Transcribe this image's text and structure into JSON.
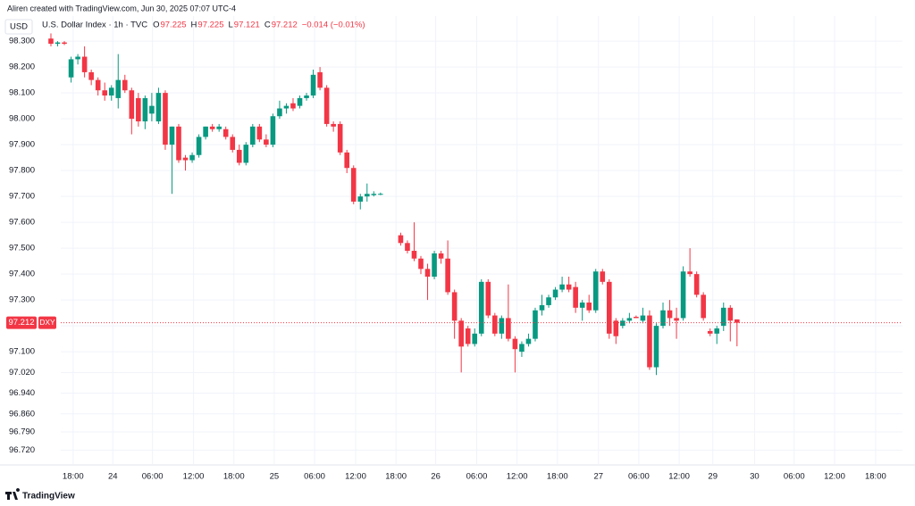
{
  "chart_data": {
    "type": "candlestick",
    "header": "Aliren created with TradingView.com, Jun 30, 2025 07:07 UTC-4",
    "symbol_line": "U.S. Dollar Index · 1h · TVC",
    "currency": "USD",
    "ticker": "DXY",
    "legend_fields": [
      {
        "label": "O",
        "value": 97.225
      },
      {
        "label": "H",
        "value": 97.225
      },
      {
        "label": "L",
        "value": 97.121
      },
      {
        "label": "C",
        "value": 97.212
      }
    ],
    "change": {
      "value": -0.014,
      "label": "−0.014 (−0.01%)"
    },
    "last_price": 97.212,
    "brand": "TradingView",
    "up_color": "#089981",
    "down_color": "#f23645",
    "grid": true,
    "open": [
      98.31,
      98.29,
      98.295,
      98.16,
      98.23,
      98.24,
      98.18,
      98.15,
      98.11,
      98.09,
      98.08,
      98.15,
      98.11,
      98.08,
      97.99,
      98.02,
      97.99,
      98.1,
      97.9,
      97.97,
      97.85,
      97.84,
      97.86,
      97.93,
      97.97,
      97.96,
      97.96,
      97.93,
      97.88,
      97.83,
      97.9,
      97.97,
      97.92,
      97.9,
      98.01,
      98.04,
      98.06,
      98.05,
      98.08,
      98.09,
      98.18,
      98.12,
      97.98,
      97.98,
      97.87,
      97.81,
      97.68,
      97.7,
      97.705,
      97.71,
      null,
      null,
      97.55,
      97.52,
      97.49,
      97.46,
      97.42,
      97.39,
      97.48,
      97.46,
      97.33,
      97.22,
      97.19,
      97.13,
      97.17,
      97.37,
      97.24,
      97.17,
      97.23,
      97.15,
      97.1,
      97.13,
      97.15,
      97.26,
      97.28,
      97.31,
      97.34,
      97.36,
      97.35,
      97.27,
      97.29,
      97.26,
      97.41,
      97.37,
      97.22,
      97.2,
      97.22,
      97.235,
      97.22,
      97.24,
      97.04,
      97.2,
      97.26,
      97.23,
      97.23,
      97.41,
      97.4,
      97.32,
      97.18,
      97.17,
      97.2,
      97.27,
      97.225
    ],
    "high": [
      98.33,
      98.3,
      98.3,
      98.24,
      98.25,
      98.28,
      98.19,
      98.16,
      98.14,
      98.13,
      98.25,
      98.17,
      98.12,
      98.1,
      98.09,
      98.1,
      98.12,
      98.11,
      97.97,
      97.98,
      97.86,
      97.87,
      97.94,
      97.97,
      97.98,
      97.98,
      97.97,
      97.94,
      97.9,
      97.91,
      97.98,
      97.98,
      97.94,
      98.02,
      98.07,
      98.06,
      98.08,
      98.09,
      98.1,
      98.19,
      98.2,
      98.13,
      97.99,
      97.99,
      97.88,
      97.82,
      97.71,
      97.75,
      97.72,
      97.715,
      null,
      null,
      97.56,
      97.53,
      97.6,
      97.47,
      97.44,
      97.49,
      97.49,
      97.53,
      97.34,
      97.23,
      97.2,
      97.19,
      97.38,
      97.38,
      97.25,
      97.24,
      97.36,
      97.16,
      97.14,
      97.17,
      97.27,
      97.32,
      97.32,
      97.35,
      97.39,
      97.39,
      97.37,
      97.3,
      97.32,
      97.42,
      97.42,
      97.38,
      97.23,
      97.23,
      97.25,
      97.24,
      97.27,
      97.26,
      97.21,
      97.29,
      97.3,
      97.27,
      97.43,
      97.5,
      97.41,
      97.33,
      97.19,
      97.2,
      97.29,
      97.28,
      97.225
    ],
    "low": [
      98.28,
      98.28,
      98.285,
      98.14,
      98.21,
      98.16,
      98.13,
      98.09,
      98.07,
      98.07,
      98.04,
      98.1,
      97.94,
      97.97,
      97.96,
      97.99,
      97.98,
      97.88,
      97.71,
      97.83,
      97.8,
      97.83,
      97.85,
      97.92,
      97.95,
      97.95,
      97.92,
      97.87,
      97.82,
      97.82,
      97.89,
      97.91,
      97.89,
      97.89,
      98.0,
      98.02,
      98.03,
      98.04,
      98.07,
      98.08,
      98.11,
      97.97,
      97.95,
      97.86,
      97.79,
      97.67,
      97.65,
      97.68,
      97.7,
      97.705,
      null,
      null,
      97.51,
      97.48,
      97.45,
      97.4,
      97.3,
      97.38,
      97.44,
      97.32,
      97.15,
      97.02,
      97.12,
      97.12,
      97.16,
      97.23,
      97.16,
      97.15,
      97.14,
      97.02,
      97.08,
      97.12,
      97.14,
      97.24,
      97.27,
      97.3,
      97.33,
      97.33,
      97.25,
      97.22,
      97.25,
      97.25,
      97.36,
      97.15,
      97.13,
      97.19,
      97.21,
      97.23,
      97.21,
      97.03,
      97.01,
      97.19,
      97.2,
      97.15,
      97.22,
      97.39,
      97.31,
      97.22,
      97.16,
      97.13,
      97.18,
      97.14,
      97.121
    ],
    "close": [
      98.29,
      98.295,
      98.29,
      98.23,
      98.24,
      98.18,
      98.15,
      98.11,
      98.09,
      98.12,
      98.15,
      98.11,
      98.0,
      97.99,
      98.08,
      98.05,
      98.1,
      97.9,
      97.97,
      97.84,
      97.84,
      97.86,
      97.93,
      97.97,
      97.96,
      97.97,
      97.93,
      97.88,
      97.83,
      97.9,
      97.97,
      97.92,
      97.9,
      98.01,
      98.04,
      98.05,
      98.04,
      98.08,
      98.09,
      98.17,
      98.12,
      97.98,
      97.97,
      97.87,
      97.81,
      97.68,
      97.7,
      97.71,
      97.71,
      97.71,
      null,
      null,
      97.52,
      97.49,
      97.46,
      97.42,
      97.39,
      97.48,
      97.46,
      97.33,
      97.22,
      97.12,
      97.13,
      97.17,
      97.37,
      97.24,
      97.17,
      97.23,
      97.15,
      97.11,
      97.13,
      97.15,
      97.26,
      97.28,
      97.31,
      97.34,
      97.36,
      97.34,
      97.27,
      97.29,
      97.26,
      97.41,
      97.37,
      97.17,
      97.16,
      97.22,
      97.23,
      97.23,
      97.24,
      97.04,
      97.2,
      97.26,
      97.23,
      97.22,
      97.41,
      97.4,
      97.32,
      97.23,
      97.17,
      97.19,
      97.27,
      97.22,
      97.212
    ],
    "xlim": [
      -7.57,
      126.6
    ],
    "xticks": [
      {
        "value": 3.3,
        "label": "18:00"
      },
      {
        "value": 9.2,
        "label": "24"
      },
      {
        "value": 15.1,
        "label": "06:00"
      },
      {
        "value": 21.2,
        "label": "12:00"
      },
      {
        "value": 27.2,
        "label": "18:00"
      },
      {
        "value": 33.2,
        "label": "25"
      },
      {
        "value": 39.2,
        "label": "06:00"
      },
      {
        "value": 45.3,
        "label": "12:00"
      },
      {
        "value": 51.3,
        "label": "18:00"
      },
      {
        "value": 57.2,
        "label": "26"
      },
      {
        "value": 63.3,
        "label": "06:00"
      },
      {
        "value": 69.3,
        "label": "12:00"
      },
      {
        "value": 75.3,
        "label": "18:00"
      },
      {
        "value": 81.4,
        "label": "27"
      },
      {
        "value": 87.4,
        "label": "06:00"
      },
      {
        "value": 93.4,
        "label": "12:00"
      },
      {
        "value": 98.4,
        "label": "29"
      },
      {
        "value": 104.6,
        "label": "30"
      },
      {
        "value": 110.5,
        "label": "06:00"
      },
      {
        "value": 116.5,
        "label": "12:00"
      },
      {
        "value": 122.6,
        "label": "18:00"
      }
    ],
    "ylim": [
      96.666,
      98.328
    ],
    "yticks": [
      {
        "value": 98.3,
        "label": "98.300"
      },
      {
        "value": 98.2,
        "label": "98.200"
      },
      {
        "value": 98.1,
        "label": "98.100"
      },
      {
        "value": 98.0,
        "label": "98.000"
      },
      {
        "value": 97.9,
        "label": "97.900"
      },
      {
        "value": 97.8,
        "label": "97.800"
      },
      {
        "value": 97.7,
        "label": "97.700"
      },
      {
        "value": 97.6,
        "label": "97.600"
      },
      {
        "value": 97.5,
        "label": "97.500"
      },
      {
        "value": 97.4,
        "label": "97.400"
      },
      {
        "value": 97.3,
        "label": "97.300"
      },
      {
        "value": 97.2,
        "label": "97.200"
      },
      {
        "value": 97.1,
        "label": "97.100"
      },
      {
        "value": 97.02,
        "label": "97.020"
      },
      {
        "value": 96.94,
        "label": "96.940"
      },
      {
        "value": 96.86,
        "label": "96.860"
      },
      {
        "value": 96.79,
        "label": "96.790"
      },
      {
        "value": 96.72,
        "label": "96.720"
      }
    ]
  }
}
